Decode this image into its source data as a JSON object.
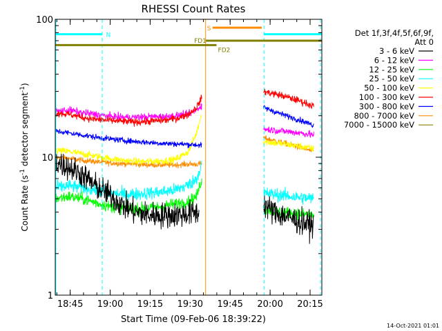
{
  "chart_data": {
    "type": "line",
    "title": "RHESSI Count Rates",
    "xlabel": "Start Time (09-Feb-06 18:39:22)",
    "ylabel_main": "Count Rate (s",
    "ylabel_sup1": "-1",
    "ylabel_mid": " detector segment",
    "ylabel_sup2": "-1",
    "ylabel_end": ")",
    "x_unit": "minutes after 18:39:22",
    "xlim": [
      0,
      100
    ],
    "ylim": [
      1,
      100
    ],
    "y_scale": "log",
    "x_ticks": [
      {
        "t": 5.6,
        "label": "18:45"
      },
      {
        "t": 20.6,
        "label": "19:00"
      },
      {
        "t": 35.6,
        "label": "19:15"
      },
      {
        "t": 50.6,
        "label": "19:30"
      },
      {
        "t": 65.6,
        "label": "19:45"
      },
      {
        "t": 80.6,
        "label": "20:00"
      },
      {
        "t": 95.6,
        "label": "20:15"
      }
    ],
    "y_ticks": [
      {
        "v": 1,
        "label": "1"
      },
      {
        "v": 10,
        "label": "10"
      },
      {
        "v": 100,
        "label": "100"
      }
    ],
    "legend_header": [
      "Det 1f,3f,4f,5f,6f,9f,",
      "Att 0"
    ],
    "legend_position": "right",
    "gaps": [
      [
        55.5,
        78.0
      ]
    ],
    "series": [
      {
        "name": "3 - 6 keV",
        "color": "#000000",
        "points": [
          [
            0,
            9.2
          ],
          [
            5,
            8.5
          ],
          [
            10,
            7.5
          ],
          [
            15,
            6.2
          ],
          [
            20,
            5.4
          ],
          [
            25,
            4.5
          ],
          [
            30,
            4.0
          ],
          [
            35,
            3.8
          ],
          [
            40,
            3.8
          ],
          [
            45,
            3.8
          ],
          [
            50,
            3.9
          ],
          [
            54,
            4.0
          ],
          [
            78,
            4.6
          ],
          [
            82,
            4.0
          ],
          [
            87,
            3.7
          ],
          [
            92,
            3.4
          ],
          [
            97,
            3.2
          ]
        ],
        "noise": 0.09
      },
      {
        "name": "6 - 12 keV",
        "color": "#ff00ff",
        "points": [
          [
            0,
            21.5
          ],
          [
            5,
            22
          ],
          [
            10,
            21
          ],
          [
            15,
            20.5
          ],
          [
            20,
            19.8
          ],
          [
            25,
            19.5
          ],
          [
            30,
            19.5
          ],
          [
            35,
            19.7
          ],
          [
            40,
            19.7
          ],
          [
            45,
            20
          ],
          [
            50,
            20.5
          ],
          [
            53,
            22
          ],
          [
            55,
            24
          ],
          [
            78,
            16
          ],
          [
            85,
            15.5
          ],
          [
            92,
            15
          ],
          [
            97,
            14.5
          ]
        ],
        "noise": 0.025
      },
      {
        "name": "12 - 25 keV",
        "color": "#00ff00",
        "points": [
          [
            0,
            5.0
          ],
          [
            5,
            5.2
          ],
          [
            10,
            5.0
          ],
          [
            15,
            4.7
          ],
          [
            20,
            4.4
          ],
          [
            25,
            4.3
          ],
          [
            30,
            4.2
          ],
          [
            35,
            4.3
          ],
          [
            40,
            4.4
          ],
          [
            45,
            4.6
          ],
          [
            50,
            4.8
          ],
          [
            53,
            5.2
          ],
          [
            55,
            7.0
          ],
          [
            78,
            4.2
          ],
          [
            85,
            4.0
          ],
          [
            92,
            3.9
          ],
          [
            97,
            3.8
          ]
        ],
        "noise": 0.04
      },
      {
        "name": "25 - 50 keV",
        "color": "#00ffff",
        "points": [
          [
            0,
            6.0
          ],
          [
            5,
            6.2
          ],
          [
            10,
            6.0
          ],
          [
            15,
            5.8
          ],
          [
            20,
            5.5
          ],
          [
            25,
            5.4
          ],
          [
            30,
            5.4
          ],
          [
            35,
            5.5
          ],
          [
            40,
            5.6
          ],
          [
            45,
            5.8
          ],
          [
            50,
            6.3
          ],
          [
            53,
            7.0
          ],
          [
            55,
            9.0
          ],
          [
            78,
            5.5
          ],
          [
            85,
            5.3
          ],
          [
            92,
            5.1
          ],
          [
            97,
            5.0
          ]
        ],
        "noise": 0.045
      },
      {
        "name": "50 - 100 keV",
        "color": "#ffff00",
        "points": [
          [
            0,
            11.2
          ],
          [
            5,
            11
          ],
          [
            10,
            10.6
          ],
          [
            15,
            10.2
          ],
          [
            20,
            9.8
          ],
          [
            25,
            9.5
          ],
          [
            30,
            9.3
          ],
          [
            35,
            9.3
          ],
          [
            40,
            9.4
          ],
          [
            45,
            9.6
          ],
          [
            50,
            11
          ],
          [
            53,
            15
          ],
          [
            55,
            21
          ],
          [
            78,
            13
          ],
          [
            85,
            12.5
          ],
          [
            92,
            12
          ],
          [
            97,
            11.5
          ]
        ],
        "noise": 0.025
      },
      {
        "name": "100 - 300 keV",
        "color": "#ff0000",
        "points": [
          [
            0,
            21
          ],
          [
            5,
            20.5
          ],
          [
            10,
            19.5
          ],
          [
            15,
            18.8
          ],
          [
            20,
            18.5
          ],
          [
            25,
            18.2
          ],
          [
            30,
            18
          ],
          [
            35,
            18.2
          ],
          [
            40,
            18.5
          ],
          [
            45,
            19
          ],
          [
            50,
            20.5
          ],
          [
            53,
            23
          ],
          [
            55,
            27
          ],
          [
            78,
            30
          ],
          [
            85,
            28
          ],
          [
            92,
            25.5
          ],
          [
            97,
            23.5
          ]
        ],
        "noise": 0.025
      },
      {
        "name": "300 - 800 keV",
        "color": "#0000ff",
        "points": [
          [
            0,
            15.5
          ],
          [
            5,
            15
          ],
          [
            10,
            14.5
          ],
          [
            15,
            14
          ],
          [
            20,
            13.6
          ],
          [
            25,
            13.3
          ],
          [
            30,
            13
          ],
          [
            35,
            12.8
          ],
          [
            40,
            12.6
          ],
          [
            45,
            12.5
          ],
          [
            50,
            12.4
          ],
          [
            53,
            12.3
          ],
          [
            55,
            12.2
          ],
          [
            78,
            23
          ],
          [
            85,
            20.5
          ],
          [
            92,
            18.5
          ],
          [
            97,
            17
          ]
        ],
        "noise": 0.02
      },
      {
        "name": "800 - 7000 keV",
        "color": "#ff8c00",
        "points": [
          [
            0,
            10
          ],
          [
            5,
            9.8
          ],
          [
            10,
            9.5
          ],
          [
            15,
            9.3
          ],
          [
            20,
            9.1
          ],
          [
            25,
            9.0
          ],
          [
            30,
            8.9
          ],
          [
            35,
            8.8
          ],
          [
            40,
            8.8
          ],
          [
            45,
            8.8
          ],
          [
            50,
            8.9
          ],
          [
            53,
            8.9
          ],
          [
            55,
            9.0
          ],
          [
            78,
            13.8
          ],
          [
            85,
            12.8
          ],
          [
            92,
            11.8
          ],
          [
            97,
            11
          ]
        ],
        "noise": 0.02
      },
      {
        "name": "7000 - 15000 keV",
        "color": "#808000",
        "points": [],
        "noise": 0
      }
    ],
    "attenuator_bars": [
      {
        "label": "N",
        "color": "#00ffff",
        "t0": 0,
        "t1": 17.5,
        "y": 78
      },
      {
        "label": "",
        "color": "#00ffff",
        "t0": 78.4,
        "t1": 100,
        "y": 78
      }
    ],
    "state_bars": [
      {
        "label": "S",
        "color": "#ff8c00",
        "t0": 59,
        "t1": 77.5,
        "y": 87
      },
      {
        "label": "FD1",
        "color": "#808000",
        "t0": 56.5,
        "t1": 100,
        "y": 70
      },
      {
        "label": "FD2",
        "color": "#808000",
        "t0": 0,
        "t1": 60.5,
        "y": 65
      }
    ],
    "vlines": [
      {
        "t": 0.2,
        "color": "#00ffff",
        "style": "solid"
      },
      {
        "t": 17.6,
        "color": "#00ffff",
        "style": "dashed"
      },
      {
        "t": 56.4,
        "color": "#ff8c00",
        "style": "solid"
      },
      {
        "t": 78.3,
        "color": "#00ffff",
        "style": "dashed"
      },
      {
        "t": 99.5,
        "color": "#00ffff",
        "style": "dashed"
      }
    ],
    "timestamp": "14-Oct-2021 01:01"
  }
}
